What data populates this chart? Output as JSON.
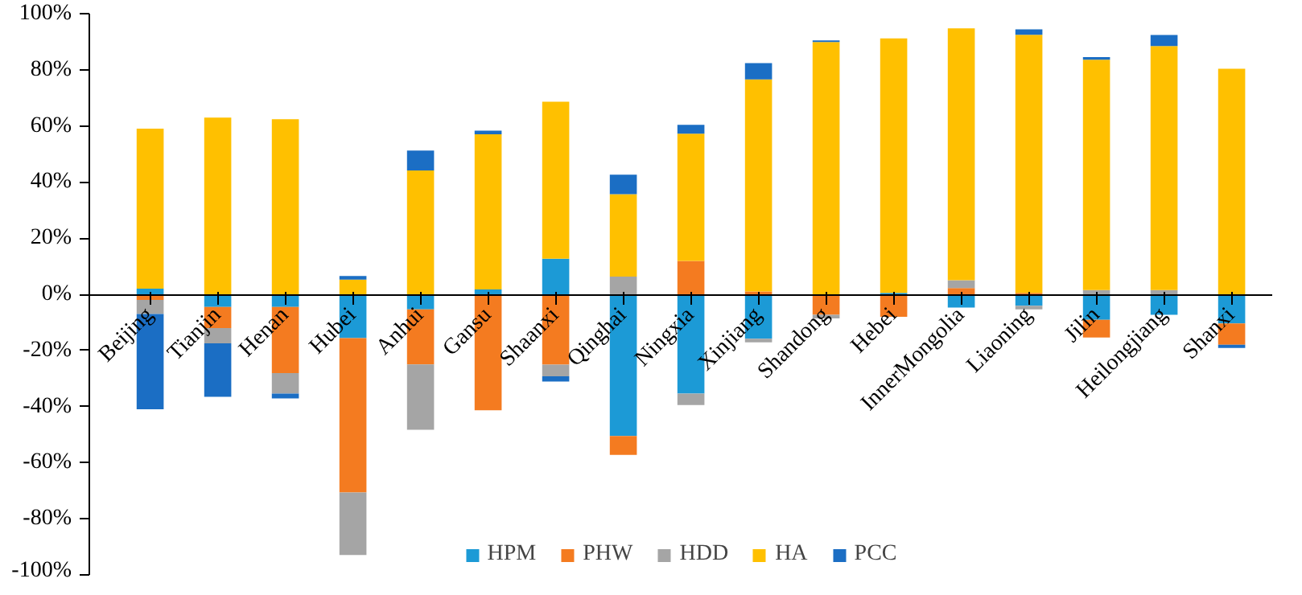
{
  "chart_data": {
    "type": "bar",
    "stacked": true,
    "categories": [
      "Beijing",
      "Tianjin",
      "Henan",
      "Hubei",
      "Anhui",
      "Gansu",
      "Shaanxi",
      "Qinghai",
      "Ningxia",
      "Xinjiang",
      "Shandong",
      "Hebei",
      "InnerMongolia",
      "Liaoning",
      "Jilin",
      "Heilongjiang",
      "Shanxi"
    ],
    "series": [
      {
        "name": "HPM",
        "color": "#1c9ad6",
        "values": [
          2,
          -4.5,
          -4.5,
          -15.6,
          -5.4,
          1.7,
          12.7,
          -50.5,
          -35.4,
          -15.8,
          null,
          0.5,
          -4.7,
          -4.1,
          -9.1,
          -7.3,
          -10.4
        ]
      },
      {
        "name": "PHW",
        "color": "#f47b20",
        "values": [
          -2,
          -7.5,
          -23.6,
          -55,
          -19.6,
          -41.3,
          -25.1,
          -6.7,
          11.9,
          1,
          -7.3,
          -8,
          2.2,
          0.5,
          -6.3,
          null,
          -7.6
        ]
      },
      {
        "name": "HDD",
        "color": "#a5a5a5",
        "values": [
          -5,
          -5.5,
          -7.3,
          -22.3,
          -23.3,
          null,
          -4.1,
          6.3,
          -4.1,
          -1.3,
          -1.3,
          null,
          2.8,
          -1.3,
          1.5,
          1.5,
          null
        ]
      },
      {
        "name": "HA",
        "color": "#ffc000",
        "values": [
          57,
          63,
          62.4,
          5.2,
          44.1,
          55.3,
          55.9,
          29.4,
          45.3,
          75.6,
          89.9,
          90.7,
          89.8,
          92,
          82.1,
          87,
          80.4
        ]
      },
      {
        "name": "PCC",
        "color": "#1b6ec4",
        "values": [
          -34,
          -19,
          -1.7,
          1.3,
          7.1,
          1.3,
          -1.9,
          6.9,
          3.2,
          5.8,
          0.6,
          null,
          null,
          1.9,
          0.9,
          3.9,
          -1.1
        ]
      }
    ],
    "ylim": [
      -100,
      100
    ],
    "yticks": [
      {
        "value": -100,
        "label": "-100%"
      },
      {
        "value": -80,
        "label": "-80%"
      },
      {
        "value": -60,
        "label": "-60%"
      },
      {
        "value": -40,
        "label": "-40%"
      },
      {
        "value": -20,
        "label": "-20%"
      },
      {
        "value": 0,
        "label": "0%"
      },
      {
        "value": 20,
        "label": "20%"
      },
      {
        "value": 40,
        "label": "40%"
      },
      {
        "value": 60,
        "label": "60%"
      },
      {
        "value": 80,
        "label": "80%"
      },
      {
        "value": 100,
        "label": "100%"
      }
    ],
    "grid": false,
    "legend": "bottom"
  }
}
